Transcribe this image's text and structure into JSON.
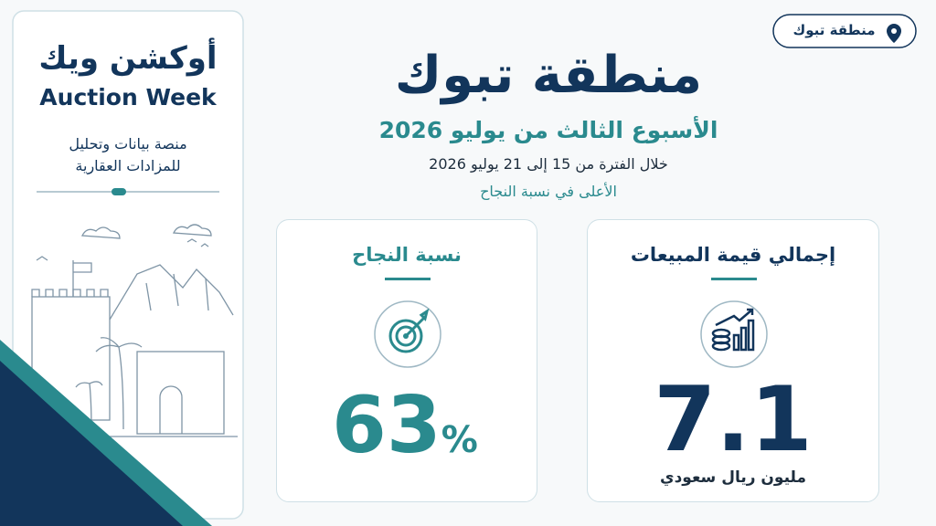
{
  "location_badge": "منطقة تبوك",
  "logo": {
    "arabic": "أوكشن ويك",
    "english": "Auction Week"
  },
  "tagline": [
    "منصة بيانات وتحليل",
    "للمزادات العقارية"
  ],
  "header": {
    "title": "منطقة تبوك",
    "subtitle": "الأسبوع الثالث من يوليو 2026",
    "period": "خلال الفترة من 15 إلى 21 يوليو 2026",
    "note": "الأعلى في نسبة النجاح"
  },
  "cards": [
    {
      "title": "إجمالي قيمة المبيعات",
      "value": 7.1,
      "unit": "مليون ريال سعودي"
    },
    {
      "title": "نسبة النجاح",
      "value": 63,
      "unit": "%"
    }
  ]
}
